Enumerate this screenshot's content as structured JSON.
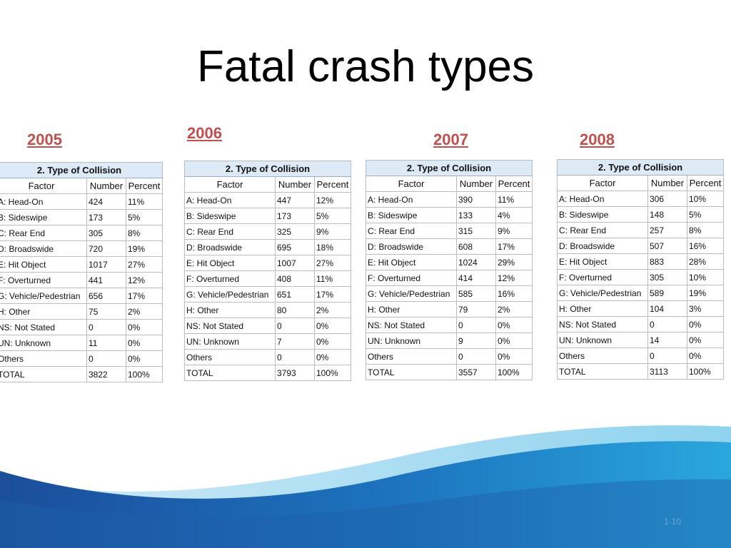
{
  "slide": {
    "title": "Fatal crash types",
    "page_number": "1-10"
  },
  "table_caption": "2. Type of Collision",
  "columns": [
    "Factor",
    "Number",
    "Percent"
  ],
  "tables": [
    {
      "year": "2005",
      "rows": [
        [
          "A: Head-On",
          "424",
          "11%"
        ],
        [
          "B: Sideswipe",
          "173",
          "5%"
        ],
        [
          "C: Rear End",
          "305",
          "8%"
        ],
        [
          "D: Broadswide",
          "720",
          "19%"
        ],
        [
          "E: Hit Object",
          "1017",
          "27%"
        ],
        [
          "F: Overturned",
          "441",
          "12%"
        ],
        [
          "G: Vehicle/Pedestrian",
          "656",
          "17%"
        ],
        [
          "H: Other",
          "75",
          "2%"
        ],
        [
          "NS: Not Stated",
          "0",
          "0%"
        ],
        [
          "UN: Unknown",
          "11",
          "0%"
        ],
        [
          "Others",
          "0",
          "0%"
        ],
        [
          "TOTAL",
          "3822",
          "100%"
        ]
      ]
    },
    {
      "year": "2006",
      "rows": [
        [
          "A: Head-On",
          "447",
          "12%"
        ],
        [
          "B: Sideswipe",
          "173",
          "5%"
        ],
        [
          "C: Rear End",
          "325",
          "9%"
        ],
        [
          "D: Broadswide",
          "695",
          "18%"
        ],
        [
          "E: Hit Object",
          "1007",
          "27%"
        ],
        [
          "F: Overturned",
          "408",
          "11%"
        ],
        [
          "G: Vehicle/Pedestrian",
          "651",
          "17%"
        ],
        [
          "H: Other",
          "80",
          "2%"
        ],
        [
          "NS: Not Stated",
          "0",
          "0%"
        ],
        [
          "UN: Unknown",
          "7",
          "0%"
        ],
        [
          "Others",
          "0",
          "0%"
        ],
        [
          "TOTAL",
          "3793",
          "100%"
        ]
      ]
    },
    {
      "year": "2007",
      "rows": [
        [
          "A: Head-On",
          "390",
          "11%"
        ],
        [
          "B: Sideswipe",
          "133",
          "4%"
        ],
        [
          "C: Rear End",
          "315",
          "9%"
        ],
        [
          "D: Broadswide",
          "608",
          "17%"
        ],
        [
          "E: Hit Object",
          "1024",
          "29%"
        ],
        [
          "F: Overturned",
          "414",
          "12%"
        ],
        [
          "G: Vehicle/Pedestrian",
          "585",
          "16%"
        ],
        [
          "H: Other",
          "79",
          "2%"
        ],
        [
          "NS: Not Stated",
          "0",
          "0%"
        ],
        [
          "UN: Unknown",
          "9",
          "0%"
        ],
        [
          "Others",
          "0",
          "0%"
        ],
        [
          "TOTAL",
          "3557",
          "100%"
        ]
      ]
    },
    {
      "year": "2008",
      "rows": [
        [
          "A: Head-On",
          "306",
          "10%"
        ],
        [
          "B: Sideswipe",
          "148",
          "5%"
        ],
        [
          "C: Rear End",
          "257",
          "8%"
        ],
        [
          "D: Broadswide",
          "507",
          "16%"
        ],
        [
          "E: Hit Object",
          "883",
          "28%"
        ],
        [
          "F: Overturned",
          "305",
          "10%"
        ],
        [
          "G: Vehicle/Pedestrian",
          "589",
          "19%"
        ],
        [
          "H: Other",
          "104",
          "3%"
        ],
        [
          "NS: Not Stated",
          "0",
          "0%"
        ],
        [
          "UN: Unknown",
          "14",
          "0%"
        ],
        [
          "Others",
          "0",
          "0%"
        ],
        [
          "TOTAL",
          "3113",
          "100%"
        ]
      ]
    }
  ],
  "colors": {
    "year_heading": "#c0504d",
    "caption_bg": "#dde9f5",
    "wave_dark": "#1f4e9c",
    "wave_light": "#9fd8f0"
  }
}
